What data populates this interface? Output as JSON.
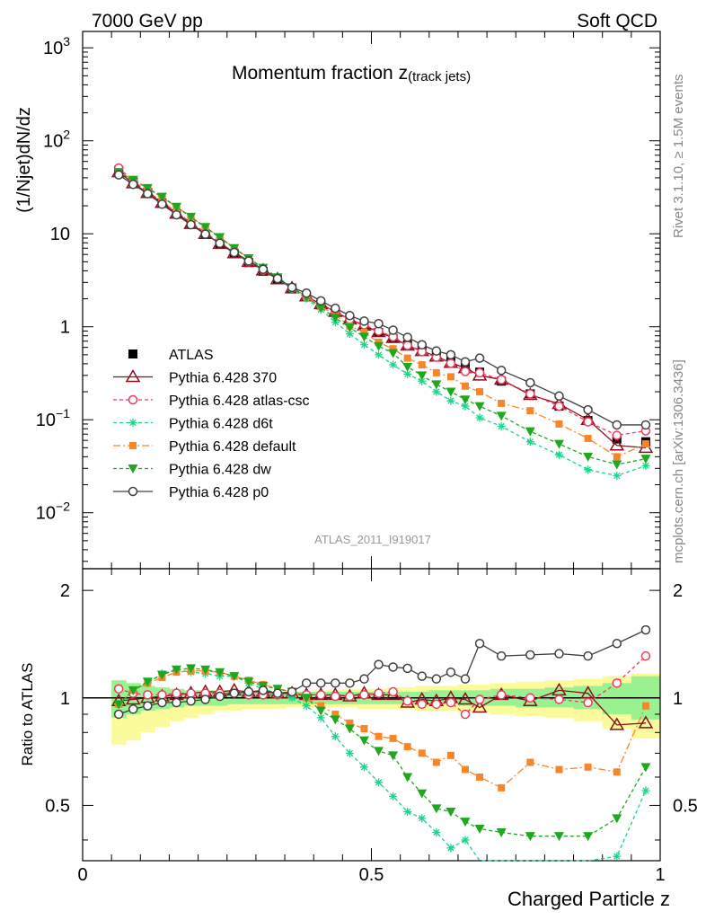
{
  "header": {
    "left": "7000 GeV pp",
    "right": "Soft QCD"
  },
  "side_texts": {
    "rivet": "Rivet 3.1.10, ≥ 1.5M events",
    "mcplots": "mcplots.cern.ch [arXiv:1306.3436]"
  },
  "colors": {
    "ATLAS": "#000000",
    "Pythia 6.428 370": "#8b0f1d",
    "Pythia 6.428 atlas-csc": "#ee3b5e",
    "Pythia 6.428 d6t": "#19d68a",
    "Pythia 6.428 default": "#f7862b",
    "Pythia 6.428 dw": "#1fa81f",
    "Pythia 6.428 p0": "#404040",
    "band_inner": "#99f28f",
    "band_outer": "#fbfb9b"
  },
  "chart_data": [
    {
      "type": "line",
      "title": "Momentum fraction z",
      "title_sub": "(track jets)",
      "ylabel": "(1/Njet)dN/dz",
      "watermark": "ATLAS_2011_I919017",
      "yscale": "log",
      "ylim": [
        0.0025,
        1500
      ],
      "xlim": [
        0,
        1
      ],
      "yticks": [
        {
          "v": 0.01,
          "base": "10",
          "exp": "−2"
        },
        {
          "v": 0.1,
          "base": "10",
          "exp": "−1"
        },
        {
          "v": 1,
          "base": "1",
          "exp": ""
        },
        {
          "v": 10,
          "base": "10",
          "exp": ""
        },
        {
          "v": 100,
          "base": "10",
          "exp": "2"
        },
        {
          "v": 1000,
          "base": "10",
          "exp": "3"
        }
      ],
      "x": [
        0.0625,
        0.0875,
        0.1125,
        0.1375,
        0.1625,
        0.1875,
        0.2125,
        0.2375,
        0.2625,
        0.2875,
        0.3125,
        0.3375,
        0.3625,
        0.3875,
        0.4125,
        0.4375,
        0.4625,
        0.4875,
        0.5125,
        0.5375,
        0.5625,
        0.5875,
        0.6125,
        0.6375,
        0.6625,
        0.6875,
        0.725,
        0.775,
        0.825,
        0.875,
        0.925,
        0.975
      ],
      "series": [
        {
          "name": "ATLAS",
          "marker": "square",
          "dash": "",
          "values": [
            48,
            36,
            28,
            21.5,
            16.5,
            12.8,
            10,
            7.8,
            6.1,
            4.9,
            3.95,
            3.2,
            2.55,
            2.1,
            1.73,
            1.43,
            1.2,
            1.02,
            0.87,
            0.75,
            0.64,
            0.56,
            0.49,
            0.42,
            0.37,
            0.325,
            0.26,
            0.19,
            0.14,
            0.098,
            0.062,
            0.058
          ]
        },
        {
          "name": "Pythia 6.428 370",
          "marker": "triangle-open",
          "dash": "",
          "values": [
            46,
            35,
            27.5,
            21.5,
            16.5,
            12.8,
            10,
            7.8,
            6.2,
            5.0,
            4.05,
            3.25,
            2.6,
            2.13,
            1.75,
            1.45,
            1.2,
            1.03,
            0.88,
            0.76,
            0.63,
            0.55,
            0.48,
            0.41,
            0.36,
            0.3,
            0.27,
            0.185,
            0.148,
            0.1,
            0.053,
            0.05
          ]
        },
        {
          "name": "Pythia 6.428 atlas-csc",
          "marker": "circle-open",
          "dash": "4,3",
          "values": [
            51,
            37,
            28.5,
            22,
            17,
            13.2,
            10.3,
            8.0,
            6.3,
            5.0,
            4.05,
            3.3,
            2.6,
            2.13,
            1.75,
            1.45,
            1.2,
            1.05,
            0.9,
            0.78,
            0.63,
            0.54,
            0.47,
            0.405,
            0.33,
            0.32,
            0.27,
            0.19,
            0.14,
            0.095,
            0.068,
            0.076
          ]
        },
        {
          "name": "Pythia 6.428 d6t",
          "marker": "star",
          "dash": "4,3",
          "values": [
            46,
            38,
            31,
            25,
            19.5,
            15,
            11.7,
            9.0,
            7.0,
            5.4,
            4.2,
            3.3,
            2.55,
            2.0,
            1.53,
            1.12,
            0.84,
            0.64,
            0.5,
            0.39,
            0.31,
            0.26,
            0.2,
            0.16,
            0.14,
            0.105,
            0.085,
            0.058,
            0.042,
            0.029,
            0.025,
            0.032
          ]
        },
        {
          "name": "Pythia 6.428 default",
          "marker": "square-small",
          "dash": "8,3,2,3",
          "values": [
            46,
            38,
            31,
            24.5,
            19.5,
            15.2,
            11.8,
            9.2,
            7.0,
            5.5,
            4.3,
            3.4,
            2.65,
            2.1,
            1.65,
            1.35,
            1.02,
            0.87,
            0.68,
            0.58,
            0.46,
            0.39,
            0.32,
            0.29,
            0.23,
            0.2,
            0.15,
            0.125,
            0.09,
            0.063,
            0.04,
            0.055
          ]
        },
        {
          "name": "Pythia 6.428 dw",
          "marker": "triangle-down",
          "dash": "4,3",
          "values": [
            46,
            38,
            31,
            25,
            19.5,
            15.2,
            11.8,
            9.2,
            7.0,
            5.45,
            4.3,
            3.4,
            2.65,
            2.1,
            1.6,
            1.25,
            0.98,
            0.78,
            0.62,
            0.52,
            0.37,
            0.3,
            0.24,
            0.2,
            0.165,
            0.14,
            0.11,
            0.075,
            0.055,
            0.04,
            0.033,
            0.038
          ]
        },
        {
          "name": "Pythia 6.428 p0",
          "marker": "circle-open",
          "dash": "",
          "values": [
            43,
            34,
            27,
            20.8,
            16,
            12.5,
            9.9,
            7.9,
            6.3,
            5.1,
            4.15,
            3.3,
            2.65,
            2.3,
            1.9,
            1.58,
            1.32,
            1.15,
            1.08,
            0.92,
            0.77,
            0.64,
            0.55,
            0.5,
            0.42,
            0.46,
            0.34,
            0.25,
            0.18,
            0.128,
            0.088,
            0.088
          ]
        }
      ]
    },
    {
      "type": "line",
      "ylabel": "Ratio to ATLAS",
      "xlabel": "Charged Particle z",
      "ylim": [
        0.35,
        2.3
      ],
      "xlim": [
        0,
        1
      ],
      "yticks": [
        0.5,
        1,
        2
      ],
      "xticks": [
        0,
        0.5,
        1
      ],
      "reference": 1,
      "band_inner": [
        [
          0.88,
          1.12
        ],
        [
          0.9,
          1.1
        ],
        [
          0.92,
          1.08
        ],
        [
          0.93,
          1.07
        ],
        [
          0.94,
          1.06
        ],
        [
          0.95,
          1.05
        ],
        [
          0.95,
          1.05
        ],
        [
          0.95,
          1.05
        ],
        [
          0.96,
          1.04
        ],
        [
          0.96,
          1.04
        ],
        [
          0.96,
          1.04
        ],
        [
          0.96,
          1.04
        ],
        [
          0.96,
          1.04
        ],
        [
          0.96,
          1.04
        ],
        [
          0.96,
          1.04
        ],
        [
          0.96,
          1.04
        ],
        [
          0.96,
          1.04
        ],
        [
          0.96,
          1.04
        ],
        [
          0.96,
          1.04
        ],
        [
          0.96,
          1.04
        ],
        [
          0.96,
          1.04
        ],
        [
          0.96,
          1.04
        ],
        [
          0.96,
          1.05
        ],
        [
          0.96,
          1.05
        ],
        [
          0.95,
          1.05
        ],
        [
          0.95,
          1.05
        ],
        [
          0.95,
          1.06
        ],
        [
          0.94,
          1.06
        ],
        [
          0.94,
          1.07
        ],
        [
          0.93,
          1.08
        ],
        [
          0.9,
          1.1
        ],
        [
          0.87,
          1.15
        ]
      ],
      "band_outer": [
        [
          0.74,
          1.06
        ],
        [
          0.76,
          1.06
        ],
        [
          0.8,
          1.05
        ],
        [
          0.83,
          1.05
        ],
        [
          0.86,
          1.04
        ],
        [
          0.88,
          1.04
        ],
        [
          0.9,
          1.03
        ],
        [
          0.92,
          1.03
        ],
        [
          0.92,
          1.03
        ],
        [
          0.93,
          1.03
        ],
        [
          0.93,
          1.03
        ],
        [
          0.93,
          1.04
        ],
        [
          0.94,
          1.04
        ],
        [
          0.94,
          1.04
        ],
        [
          0.94,
          1.05
        ],
        [
          0.94,
          1.05
        ],
        [
          0.94,
          1.06
        ],
        [
          0.93,
          1.06
        ],
        [
          0.93,
          1.06
        ],
        [
          0.93,
          1.07
        ],
        [
          0.93,
          1.07
        ],
        [
          0.92,
          1.08
        ],
        [
          0.92,
          1.08
        ],
        [
          0.92,
          1.08
        ],
        [
          0.91,
          1.09
        ],
        [
          0.91,
          1.09
        ],
        [
          0.9,
          1.1
        ],
        [
          0.89,
          1.11
        ],
        [
          0.88,
          1.12
        ],
        [
          0.86,
          1.13
        ],
        [
          0.82,
          1.15
        ],
        [
          0.77,
          1.17
        ]
      ],
      "series": [
        {
          "name": "Pythia 6.428 370",
          "values": [
            0.98,
            0.99,
            1.0,
            1.01,
            1.02,
            1.03,
            1.04,
            1.04,
            1.05,
            1.04,
            1.04,
            1.03,
            1.03,
            1.02,
            1.02,
            1.02,
            1.01,
            1.03,
            1.02,
            1.02,
            0.97,
            0.99,
            0.98,
            1.0,
            0.99,
            0.94,
            1.02,
            0.98,
            1.05,
            1.03,
            0.84,
            0.85
          ]
        },
        {
          "name": "Pythia 6.428 atlas-csc",
          "values": [
            1.06,
            1.03,
            1.02,
            1.02,
            1.03,
            1.03,
            1.03,
            1.03,
            1.03,
            1.02,
            1.02,
            1.02,
            1.03,
            1.02,
            1.02,
            1.01,
            1.01,
            1.02,
            1.03,
            1.04,
            0.98,
            0.96,
            0.96,
            0.97,
            0.9,
            0.99,
            1.02,
            1.0,
            0.99,
            0.97,
            1.1,
            1.31
          ]
        },
        {
          "name": "Pythia 6.428 d6t",
          "values": [
            0.96,
            1.05,
            1.1,
            1.17,
            1.2,
            1.18,
            1.17,
            1.15,
            1.15,
            1.1,
            1.06,
            1.03,
            1.0,
            0.95,
            0.88,
            0.78,
            0.7,
            0.64,
            0.58,
            0.53,
            0.48,
            0.46,
            0.42,
            0.38,
            0.4,
            0.32,
            0.32,
            0.3,
            0.28,
            0.29,
            0.36,
            0.55
          ]
        },
        {
          "name": "Pythia 6.428 default",
          "values": [
            0.96,
            1.05,
            1.1,
            1.14,
            1.18,
            1.19,
            1.19,
            1.18,
            1.15,
            1.12,
            1.09,
            1.06,
            1.04,
            1.0,
            0.95,
            0.9,
            0.85,
            0.82,
            0.78,
            0.77,
            0.73,
            0.7,
            0.66,
            0.69,
            0.63,
            0.6,
            0.56,
            0.66,
            0.63,
            0.64,
            0.62,
            0.95
          ]
        },
        {
          "name": "Pythia 6.428 dw",
          "values": [
            0.96,
            1.05,
            1.11,
            1.16,
            1.2,
            1.21,
            1.2,
            1.18,
            1.15,
            1.11,
            1.08,
            1.06,
            1.04,
            1.0,
            0.92,
            0.87,
            0.82,
            0.76,
            0.71,
            0.69,
            0.6,
            0.54,
            0.49,
            0.48,
            0.45,
            0.43,
            0.42,
            0.41,
            0.41,
            0.41,
            0.46,
            0.64
          ]
        },
        {
          "name": "Pythia 6.428 p0",
          "values": [
            0.9,
            0.93,
            0.95,
            0.97,
            0.97,
            0.98,
            0.99,
            1.01,
            1.03,
            1.04,
            1.05,
            1.03,
            1.04,
            1.1,
            1.1,
            1.1,
            1.1,
            1.13,
            1.24,
            1.22,
            1.21,
            1.15,
            1.13,
            1.18,
            1.13,
            1.42,
            1.31,
            1.32,
            1.33,
            1.31,
            1.42,
            1.55
          ]
        }
      ]
    }
  ]
}
